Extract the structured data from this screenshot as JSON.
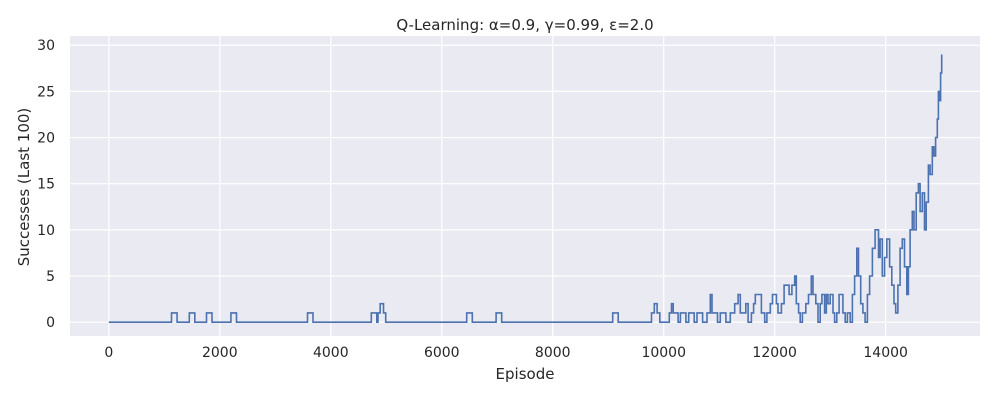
{
  "chart_data": {
    "type": "line",
    "title": "Q-Learning: α=0.9, γ=0.99, ε=2.0",
    "xlabel": "Episode",
    "ylabel": "Successes (Last 100)",
    "xlim": [
      -700,
      15700
    ],
    "ylim": [
      -1.5,
      31
    ],
    "xticks": [
      0,
      2000,
      4000,
      6000,
      8000,
      10000,
      12000,
      14000
    ],
    "yticks": [
      0,
      5,
      10,
      15,
      20,
      25,
      30
    ],
    "grid": true,
    "legend": "none",
    "colors": {
      "background": "#eaeaf2",
      "grid": "#ffffff",
      "line": "#4c72b0",
      "text": "#262626"
    },
    "series": [
      {
        "points": [
          [
            0,
            0
          ],
          [
            1130,
            0
          ],
          [
            1130,
            1
          ],
          [
            1230,
            1
          ],
          [
            1230,
            0
          ],
          [
            1450,
            0
          ],
          [
            1450,
            1
          ],
          [
            1550,
            1
          ],
          [
            1550,
            0
          ],
          [
            1760,
            0
          ],
          [
            1760,
            1
          ],
          [
            1860,
            1
          ],
          [
            1860,
            0
          ],
          [
            2200,
            0
          ],
          [
            2200,
            1
          ],
          [
            2300,
            1
          ],
          [
            2300,
            0
          ],
          [
            3580,
            0
          ],
          [
            3580,
            1
          ],
          [
            3680,
            1
          ],
          [
            3680,
            0
          ],
          [
            4730,
            0
          ],
          [
            4730,
            1
          ],
          [
            4830,
            1
          ],
          [
            4830,
            0
          ],
          [
            4850,
            0
          ],
          [
            4850,
            1
          ],
          [
            4890,
            1
          ],
          [
            4890,
            2
          ],
          [
            4950,
            2
          ],
          [
            4950,
            1
          ],
          [
            4990,
            1
          ],
          [
            4990,
            0
          ],
          [
            6450,
            0
          ],
          [
            6450,
            1
          ],
          [
            6550,
            1
          ],
          [
            6550,
            0
          ],
          [
            6980,
            0
          ],
          [
            6980,
            1
          ],
          [
            7080,
            1
          ],
          [
            7080,
            0
          ],
          [
            9080,
            0
          ],
          [
            9080,
            1
          ],
          [
            9180,
            1
          ],
          [
            9180,
            0
          ],
          [
            9780,
            0
          ],
          [
            9780,
            1
          ],
          [
            9830,
            1
          ],
          [
            9830,
            2
          ],
          [
            9880,
            2
          ],
          [
            9880,
            1
          ],
          [
            9930,
            1
          ],
          [
            9930,
            0
          ],
          [
            10100,
            0
          ],
          [
            10100,
            1
          ],
          [
            10140,
            1
          ],
          [
            10140,
            2
          ],
          [
            10170,
            2
          ],
          [
            10170,
            1
          ],
          [
            10260,
            1
          ],
          [
            10260,
            0
          ],
          [
            10300,
            0
          ],
          [
            10300,
            1
          ],
          [
            10400,
            1
          ],
          [
            10400,
            0
          ],
          [
            10450,
            0
          ],
          [
            10450,
            1
          ],
          [
            10550,
            1
          ],
          [
            10550,
            0
          ],
          [
            10600,
            0
          ],
          [
            10600,
            1
          ],
          [
            10700,
            1
          ],
          [
            10700,
            0
          ],
          [
            10780,
            0
          ],
          [
            10780,
            1
          ],
          [
            10840,
            1
          ],
          [
            10840,
            3
          ],
          [
            10870,
            3
          ],
          [
            10870,
            1
          ],
          [
            10970,
            1
          ],
          [
            10970,
            0
          ],
          [
            11020,
            0
          ],
          [
            11020,
            1
          ],
          [
            11120,
            1
          ],
          [
            11120,
            0
          ],
          [
            11200,
            0
          ],
          [
            11200,
            1
          ],
          [
            11280,
            1
          ],
          [
            11280,
            2
          ],
          [
            11340,
            2
          ],
          [
            11340,
            3
          ],
          [
            11380,
            3
          ],
          [
            11380,
            1
          ],
          [
            11480,
            1
          ],
          [
            11480,
            2
          ],
          [
            11520,
            2
          ],
          [
            11520,
            0
          ],
          [
            11580,
            0
          ],
          [
            11580,
            1
          ],
          [
            11620,
            1
          ],
          [
            11620,
            2
          ],
          [
            11650,
            2
          ],
          [
            11650,
            3
          ],
          [
            11760,
            3
          ],
          [
            11760,
            1
          ],
          [
            11820,
            1
          ],
          [
            11820,
            0
          ],
          [
            11860,
            0
          ],
          [
            11860,
            1
          ],
          [
            11920,
            1
          ],
          [
            11920,
            2
          ],
          [
            11960,
            2
          ],
          [
            11960,
            3
          ],
          [
            12030,
            3
          ],
          [
            12030,
            2
          ],
          [
            12060,
            2
          ],
          [
            12060,
            1
          ],
          [
            12120,
            1
          ],
          [
            12120,
            2
          ],
          [
            12170,
            2
          ],
          [
            12170,
            4
          ],
          [
            12260,
            4
          ],
          [
            12260,
            3
          ],
          [
            12310,
            3
          ],
          [
            12310,
            4
          ],
          [
            12360,
            4
          ],
          [
            12360,
            5
          ],
          [
            12390,
            5
          ],
          [
            12390,
            2
          ],
          [
            12430,
            2
          ],
          [
            12430,
            1
          ],
          [
            12460,
            1
          ],
          [
            12460,
            0
          ],
          [
            12500,
            0
          ],
          [
            12500,
            1
          ],
          [
            12560,
            1
          ],
          [
            12560,
            2
          ],
          [
            12610,
            2
          ],
          [
            12610,
            3
          ],
          [
            12660,
            3
          ],
          [
            12660,
            5
          ],
          [
            12690,
            5
          ],
          [
            12690,
            3
          ],
          [
            12740,
            3
          ],
          [
            12740,
            2
          ],
          [
            12780,
            2
          ],
          [
            12780,
            0
          ],
          [
            12820,
            0
          ],
          [
            12820,
            2
          ],
          [
            12850,
            2
          ],
          [
            12850,
            3
          ],
          [
            12900,
            3
          ],
          [
            12900,
            1
          ],
          [
            12930,
            1
          ],
          [
            12930,
            3
          ],
          [
            12960,
            3
          ],
          [
            12960,
            2
          ],
          [
            13000,
            2
          ],
          [
            13000,
            3
          ],
          [
            13050,
            3
          ],
          [
            13050,
            1
          ],
          [
            13080,
            1
          ],
          [
            13080,
            0
          ],
          [
            13120,
            0
          ],
          [
            13120,
            1
          ],
          [
            13160,
            1
          ],
          [
            13160,
            3
          ],
          [
            13230,
            3
          ],
          [
            13230,
            1
          ],
          [
            13270,
            1
          ],
          [
            13270,
            0
          ],
          [
            13310,
            0
          ],
          [
            13310,
            1
          ],
          [
            13360,
            1
          ],
          [
            13360,
            0
          ],
          [
            13400,
            0
          ],
          [
            13400,
            3
          ],
          [
            13440,
            3
          ],
          [
            13440,
            5
          ],
          [
            13480,
            5
          ],
          [
            13480,
            8
          ],
          [
            13510,
            8
          ],
          [
            13510,
            5
          ],
          [
            13550,
            5
          ],
          [
            13550,
            2
          ],
          [
            13590,
            2
          ],
          [
            13590,
            1
          ],
          [
            13630,
            1
          ],
          [
            13630,
            0
          ],
          [
            13670,
            0
          ],
          [
            13670,
            3
          ],
          [
            13710,
            3
          ],
          [
            13710,
            5
          ],
          [
            13760,
            5
          ],
          [
            13760,
            8
          ],
          [
            13810,
            8
          ],
          [
            13810,
            10
          ],
          [
            13870,
            10
          ],
          [
            13870,
            7
          ],
          [
            13900,
            7
          ],
          [
            13900,
            9
          ],
          [
            13940,
            9
          ],
          [
            13940,
            5
          ],
          [
            13980,
            5
          ],
          [
            13980,
            7
          ],
          [
            14020,
            7
          ],
          [
            14020,
            9
          ],
          [
            14070,
            9
          ],
          [
            14070,
            6
          ],
          [
            14110,
            6
          ],
          [
            14110,
            4
          ],
          [
            14150,
            4
          ],
          [
            14150,
            2
          ],
          [
            14180,
            2
          ],
          [
            14180,
            1
          ],
          [
            14220,
            1
          ],
          [
            14220,
            4
          ],
          [
            14260,
            4
          ],
          [
            14260,
            8
          ],
          [
            14300,
            8
          ],
          [
            14300,
            9
          ],
          [
            14340,
            9
          ],
          [
            14340,
            6
          ],
          [
            14380,
            6
          ],
          [
            14380,
            3
          ],
          [
            14410,
            3
          ],
          [
            14410,
            6
          ],
          [
            14440,
            6
          ],
          [
            14440,
            10
          ],
          [
            14480,
            10
          ],
          [
            14480,
            12
          ],
          [
            14510,
            12
          ],
          [
            14510,
            10
          ],
          [
            14550,
            10
          ],
          [
            14550,
            14
          ],
          [
            14590,
            14
          ],
          [
            14590,
            15
          ],
          [
            14620,
            15
          ],
          [
            14620,
            12
          ],
          [
            14660,
            12
          ],
          [
            14660,
            14
          ],
          [
            14700,
            14
          ],
          [
            14700,
            10
          ],
          [
            14730,
            10
          ],
          [
            14730,
            13
          ],
          [
            14770,
            13
          ],
          [
            14770,
            17
          ],
          [
            14800,
            17
          ],
          [
            14800,
            16
          ],
          [
            14840,
            16
          ],
          [
            14840,
            19
          ],
          [
            14870,
            19
          ],
          [
            14870,
            18
          ],
          [
            14900,
            18
          ],
          [
            14900,
            20
          ],
          [
            14930,
            20
          ],
          [
            14930,
            22
          ],
          [
            14950,
            22
          ],
          [
            14950,
            25
          ],
          [
            14970,
            25
          ],
          [
            14970,
            24
          ],
          [
            14990,
            24
          ],
          [
            14990,
            27
          ],
          [
            15010,
            27
          ],
          [
            15010,
            29
          ]
        ]
      }
    ]
  }
}
